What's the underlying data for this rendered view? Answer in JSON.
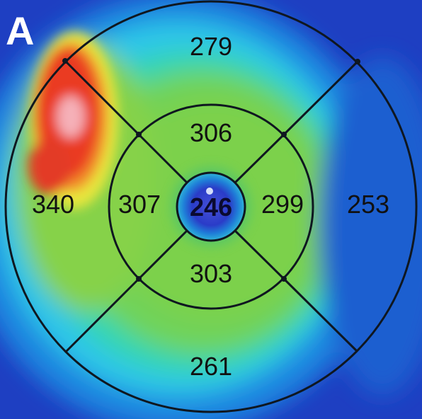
{
  "figure": {
    "panel_label": "A",
    "central_thickness": "246",
    "inner_ring": {
      "superior": "306",
      "nasal": "307",
      "temporal": "299",
      "inferior": "303"
    },
    "outer_ring": {
      "superior": "279",
      "nasal": "340",
      "temporal": "253",
      "inferior": "261"
    }
  }
}
